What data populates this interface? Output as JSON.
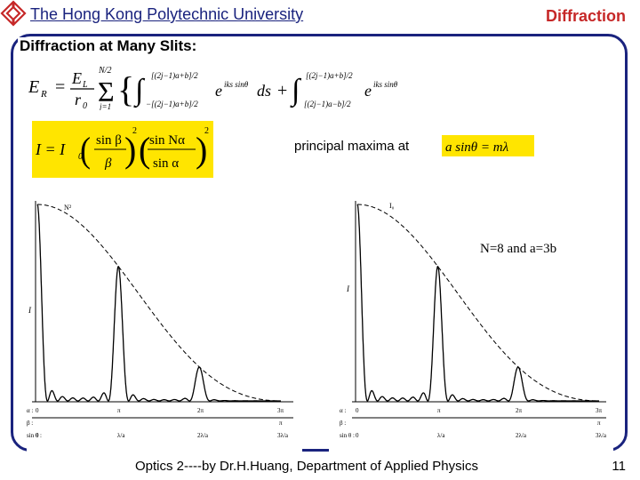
{
  "header": {
    "university": "The Hong Kong Polytechnic University",
    "topic": "Diffraction"
  },
  "section_title": "Diffraction at Many Slits:",
  "equations": {
    "field_lhs": "E",
    "field_lhs_sub": "R",
    "field_coef_num": "E",
    "field_coef_num_sub": "L",
    "field_coef_den": "r",
    "field_coef_den_sub": "0",
    "sum_top": "N/2",
    "sum_bottom": "j=1",
    "int1_upper": "[(2j−1)a+b]/2",
    "int1_lower": "−[(2j−1)a+b]/2",
    "int2_upper": "[(2j−1)a+b]/2",
    "int2_lower": "[(2j−1)a−b]/2",
    "exponent": "iks sinθ",
    "ds": "ds",
    "intensity_lhs": "I = I",
    "intensity_sub": "0",
    "sin_beta": "sin β",
    "beta": "β",
    "sin_n_alpha": "sin Nα",
    "sin_alpha": "sin α",
    "power": "2",
    "principal_maxima_label": "principal maxima at",
    "principal_maxima_eq": "a sinθ = mλ"
  },
  "figure": {
    "annotation": "N=8 and a=3b",
    "left": {
      "top_label": "N²",
      "ylabel": "I",
      "row_labels": [
        "α :",
        "β :",
        "sin θ :"
      ],
      "alpha_ticks": [
        "0",
        "π",
        "2π",
        "3π"
      ],
      "beta_ticks": [
        "",
        "",
        "",
        "π"
      ],
      "sin_ticks": [
        "0",
        "λ/a",
        "2λ/a",
        "3λ/a"
      ]
    },
    "right": {
      "top_label": "I₀",
      "ylabel": "I",
      "row_labels": [
        "α :",
        "β :",
        "sin θ :"
      ],
      "alpha_ticks": [
        "0",
        "π",
        "2π",
        "3π"
      ],
      "beta_ticks": [
        "",
        "",
        "",
        "π"
      ],
      "sin_ticks": [
        "0",
        "λ/a",
        "2λ/a",
        "3λ/a"
      ]
    }
  },
  "footer": {
    "credit": "Optics 2----by Dr.H.Huang, Department of Applied Physics",
    "page": "11"
  },
  "colors": {
    "brand_red": "#c62828",
    "navy": "#1a237e",
    "highlight": "#ffe500"
  }
}
